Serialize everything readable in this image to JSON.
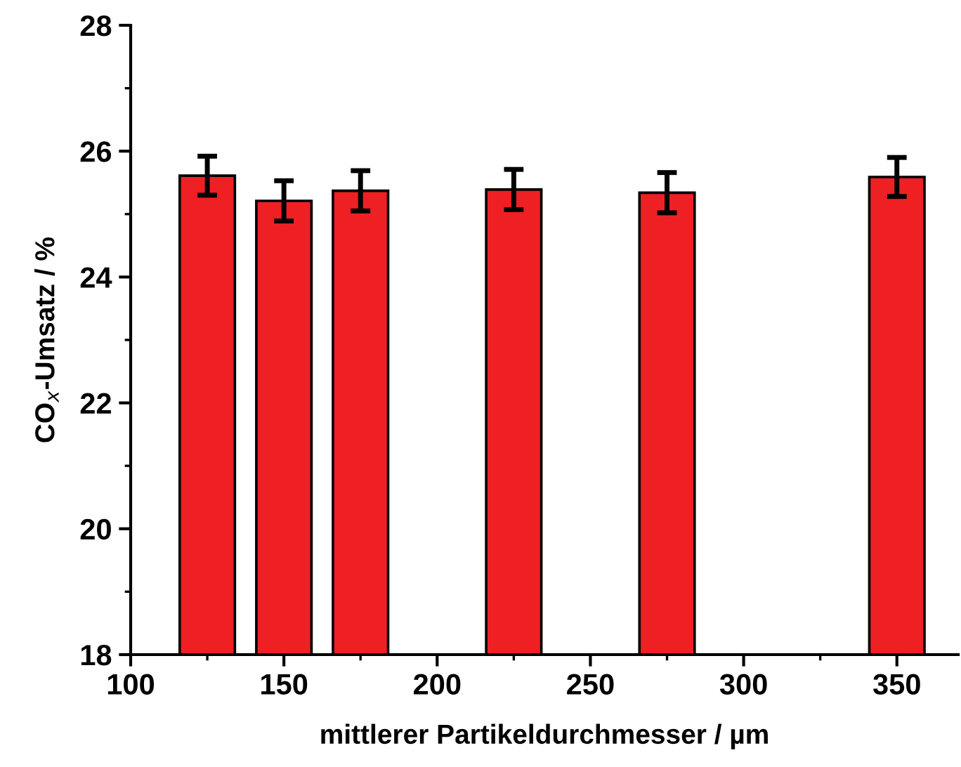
{
  "chart_data": {
    "type": "bar",
    "xlabel": "mittlerer Partikeldurchmesser / µm",
    "ylabel": "CO$_{x}$-Umsatz / %",
    "x": [
      125,
      150,
      175,
      225,
      275,
      350
    ],
    "values": [
      25.61,
      25.21,
      25.37,
      25.39,
      25.34,
      25.59
    ],
    "errors": [
      0.31,
      0.32,
      0.32,
      0.32,
      0.32,
      0.31
    ],
    "color": "#ee2024",
    "xlim": [
      100,
      370
    ],
    "xticks": [
      100,
      150,
      200,
      250,
      300,
      350
    ],
    "ylim": [
      18,
      28
    ],
    "yticks": [
      18,
      20,
      22,
      24,
      26,
      28
    ],
    "grid": false
  }
}
